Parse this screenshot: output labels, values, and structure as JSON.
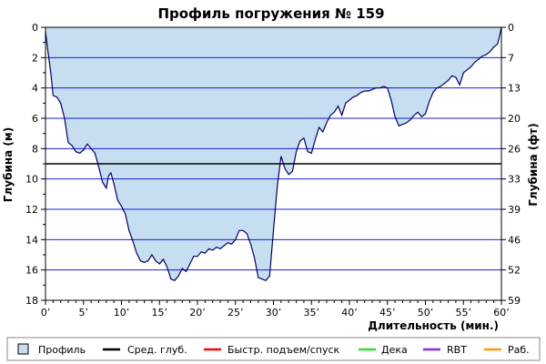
{
  "chart_data": {
    "type": "area",
    "title": "Профиль погружения № 159",
    "xlabel": "Длительность (мин.)",
    "ylabel_left": "Глубина (м)",
    "ylabel_right": "Глубина (фт)",
    "xlim": [
      0,
      60
    ],
    "ylim": [
      0,
      18
    ],
    "y_inverted": true,
    "x_ticks": [
      0,
      5,
      10,
      15,
      20,
      25,
      30,
      35,
      40,
      45,
      50,
      55,
      60
    ],
    "x_tick_labels": [
      "0’",
      "5’",
      "10’",
      "15’",
      "20’",
      "25’",
      "30’",
      "35’",
      "40’",
      "45’",
      "50’",
      "55’",
      "60’"
    ],
    "y_ticks_left": [
      0,
      2,
      4,
      6,
      8,
      10,
      12,
      14,
      16,
      18
    ],
    "y_tick_labels_left": [
      "0",
      "2",
      "4",
      "6",
      "8",
      "10",
      "12",
      "14",
      "16",
      "18"
    ],
    "y_ticks_right_at_m": [
      0,
      2,
      4,
      6,
      8,
      10,
      12,
      14,
      16,
      18
    ],
    "y_tick_labels_right": [
      "0",
      "7",
      "13",
      "20",
      "26",
      "33",
      "39",
      "46",
      "52",
      "59"
    ],
    "grid": true,
    "avg_depth": 9.0,
    "profile": {
      "x": [
        0,
        0.3,
        0.7,
        1.0,
        1.5,
        2.0,
        2.5,
        3.0,
        3.5,
        4.0,
        4.5,
        5.0,
        5.5,
        6.0,
        6.5,
        7.0,
        7.5,
        8.0,
        8.3,
        8.6,
        9.0,
        9.5,
        10.0,
        10.5,
        11.0,
        11.5,
        12.0,
        12.5,
        13.0,
        13.5,
        14.0,
        14.5,
        15.0,
        15.5,
        16.0,
        16.5,
        17.0,
        17.5,
        18.0,
        18.5,
        19.0,
        19.5,
        20.0,
        20.5,
        21.0,
        21.5,
        22.0,
        22.5,
        23.0,
        23.5,
        24.0,
        24.5,
        25.0,
        25.5,
        26.0,
        26.5,
        27.0,
        27.5,
        28.0,
        28.5,
        29.0,
        29.5,
        30.0,
        30.5,
        31.0,
        31.5,
        32.0,
        32.5,
        33.0,
        33.5,
        34.0,
        34.5,
        35.0,
        35.5,
        36.0,
        36.5,
        37.0,
        37.5,
        38.0,
        38.5,
        39.0,
        39.5,
        40.0,
        40.5,
        41.0,
        41.5,
        42.0,
        42.5,
        43.0,
        43.5,
        44.0,
        44.5,
        45.0,
        45.5,
        46.0,
        46.5,
        47.0,
        47.5,
        48.0,
        48.5,
        49.0,
        49.5,
        50.0,
        50.5,
        51.0,
        51.5,
        52.0,
        52.5,
        53.0,
        53.5,
        54.0,
        54.5,
        55.0,
        55.5,
        56.0,
        56.5,
        57.0,
        57.5,
        58.0,
        58.5,
        59.0,
        59.5,
        59.8,
        60.0
      ],
      "y": [
        0.3,
        1.5,
        3.0,
        4.5,
        4.6,
        5.0,
        6.0,
        7.6,
        7.8,
        8.2,
        8.3,
        8.1,
        7.7,
        8.0,
        8.3,
        9.2,
        10.2,
        10.6,
        9.8,
        9.6,
        10.3,
        11.4,
        11.8,
        12.3,
        13.4,
        14.1,
        14.9,
        15.4,
        15.5,
        15.4,
        15.0,
        15.4,
        15.6,
        15.3,
        15.8,
        16.6,
        16.7,
        16.4,
        15.9,
        16.1,
        15.6,
        15.1,
        15.1,
        14.8,
        14.9,
        14.6,
        14.7,
        14.5,
        14.6,
        14.4,
        14.2,
        14.3,
        14.0,
        13.4,
        13.4,
        13.6,
        14.3,
        15.2,
        16.5,
        16.6,
        16.7,
        16.4,
        13.4,
        10.5,
        8.5,
        9.3,
        9.7,
        9.5,
        8.2,
        7.5,
        7.3,
        8.2,
        8.3,
        7.4,
        6.6,
        6.9,
        6.3,
        5.8,
        5.6,
        5.2,
        5.8,
        5.0,
        4.8,
        4.6,
        4.5,
        4.3,
        4.2,
        4.2,
        4.1,
        4.0,
        4.0,
        3.9,
        4.0,
        4.8,
        5.9,
        6.5,
        6.4,
        6.3,
        6.1,
        5.8,
        5.6,
        5.9,
        5.7,
        4.9,
        4.3,
        4.0,
        3.9,
        3.7,
        3.5,
        3.2,
        3.3,
        3.8,
        3.0,
        2.8,
        2.6,
        2.3,
        2.1,
        1.9,
        1.8,
        1.6,
        1.3,
        1.1,
        0.5,
        0.0
      ]
    },
    "colors": {
      "profile_fill": "#c6def0",
      "profile_line": "#000066",
      "grid": "#1b1bd6",
      "avg_depth": "#000000",
      "fast_ascent": "#ff0000",
      "deco": "#33dd33",
      "rbt": "#8a2be2",
      "work": "#ff9900"
    },
    "legend": [
      {
        "label": "Профиль",
        "kind": "box",
        "color": "#c6def0"
      },
      {
        "label": "Сред. глуб.",
        "kind": "line",
        "color": "#000000"
      },
      {
        "label": "Быстр. подъем/спуск",
        "kind": "line",
        "color": "#ff0000"
      },
      {
        "label": "Дека",
        "kind": "line",
        "color": "#33dd33"
      },
      {
        "label": "RBT",
        "kind": "line",
        "color": "#8a2be2"
      },
      {
        "label": "Раб.",
        "kind": "line",
        "color": "#ff9900"
      }
    ]
  }
}
